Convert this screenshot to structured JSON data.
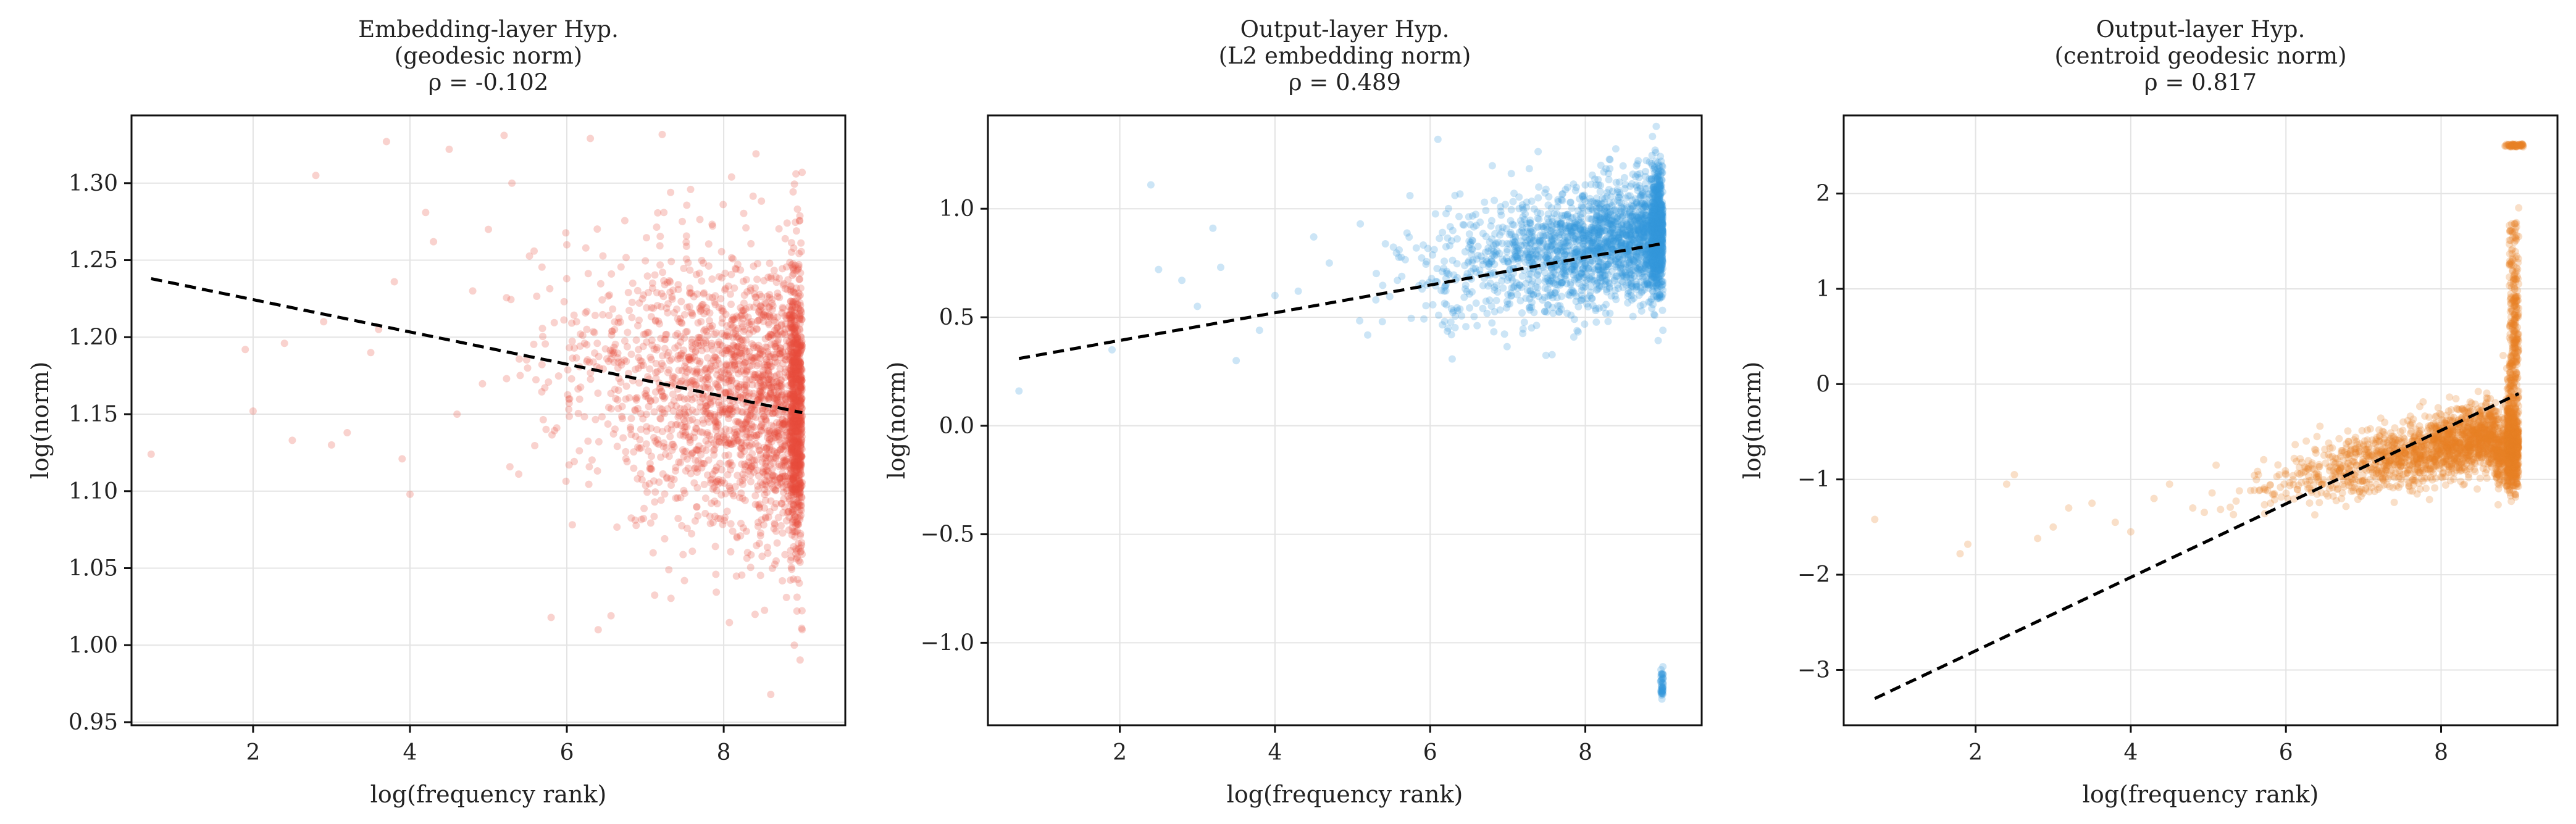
{
  "chart_data": [
    {
      "type": "scatter",
      "title": [
        "Embedding-layer Hyp.",
        "(geodesic norm)",
        "ρ = -0.102"
      ],
      "xlabel": "log(frequency rank)",
      "ylabel": "log(norm)",
      "xlim": [
        0.45,
        9.55
      ],
      "ylim": [
        0.948,
        1.344
      ],
      "xticks": [
        2,
        4,
        6,
        8
      ],
      "yticks": [
        0.95,
        1.0,
        1.05,
        1.1,
        1.15,
        1.2,
        1.25,
        1.3
      ],
      "ytick_labels": [
        "0.95",
        "1.00",
        "1.05",
        "1.10",
        "1.15",
        "1.20",
        "1.25",
        "1.30"
      ],
      "grid": true,
      "color": "#e74c3c",
      "point_count_estimate": 3000,
      "x_range_of_points": [
        0.7,
        9.0
      ],
      "points_sample": [
        [
          0.7,
          1.124
        ],
        [
          1.9,
          1.192
        ],
        [
          2.0,
          1.152
        ],
        [
          2.4,
          1.196
        ],
        [
          2.5,
          1.133
        ],
        [
          2.8,
          1.305
        ],
        [
          2.9,
          1.21
        ],
        [
          3.0,
          1.13
        ],
        [
          3.2,
          1.138
        ],
        [
          3.5,
          1.19
        ],
        [
          3.6,
          1.205
        ],
        [
          3.7,
          1.327
        ],
        [
          3.8,
          1.236
        ],
        [
          3.9,
          1.121
        ],
        [
          4.0,
          1.098
        ],
        [
          4.2,
          1.281
        ],
        [
          4.3,
          1.262
        ],
        [
          4.5,
          1.322
        ],
        [
          4.6,
          1.15
        ],
        [
          4.8,
          1.23
        ],
        [
          5.0,
          1.27
        ],
        [
          5.2,
          1.331
        ],
        [
          5.3,
          1.3
        ],
        [
          5.5,
          1.18
        ],
        [
          5.8,
          1.018
        ],
        [
          6.0,
          1.26
        ],
        [
          6.3,
          1.329
        ],
        [
          6.4,
          1.01
        ],
        [
          6.9,
          1.108
        ],
        [
          7.1,
          1.06
        ],
        [
          7.3,
          1.049
        ],
        [
          7.6,
          1.061
        ],
        [
          7.9,
          1.046
        ],
        [
          8.1,
          1.304
        ],
        [
          8.4,
          1.02
        ],
        [
          8.6,
          0.968
        ],
        [
          8.8,
          1.031
        ],
        [
          8.9,
          1.0
        ],
        [
          9.0,
          1.307
        ],
        [
          9.0,
          1.01
        ]
      ],
      "dense_region": {
        "x_range": [
          7.0,
          9.0
        ],
        "y_range": [
          1.06,
          1.25
        ]
      },
      "fit_line": {
        "x": [
          0.7,
          9.0
        ],
        "y": [
          1.238,
          1.151
        ]
      }
    },
    {
      "type": "scatter",
      "title": [
        "Output-layer Hyp.",
        "(L2 embedding norm)",
        "ρ = 0.489"
      ],
      "xlabel": "log(frequency rank)",
      "ylabel": "log(norm)",
      "xlim": [
        0.3,
        9.5
      ],
      "ylim": [
        -1.38,
        1.43
      ],
      "xticks": [
        2,
        4,
        6,
        8
      ],
      "yticks": [
        -1.0,
        -0.5,
        0.0,
        0.5,
        1.0
      ],
      "ytick_labels": [
        "−1.0",
        "−0.5",
        "0.0",
        "0.5",
        "1.0"
      ],
      "grid": true,
      "color": "#3498db",
      "point_count_estimate": 3000,
      "x_range_of_points": [
        0.7,
        9.0
      ],
      "points_sample": [
        [
          0.7,
          0.16
        ],
        [
          1.9,
          0.35
        ],
        [
          2.4,
          1.11
        ],
        [
          2.5,
          0.72
        ],
        [
          2.8,
          0.67
        ],
        [
          3.0,
          0.55
        ],
        [
          3.2,
          0.91
        ],
        [
          3.3,
          0.73
        ],
        [
          3.5,
          0.3
        ],
        [
          3.8,
          0.44
        ],
        [
          4.0,
          0.6
        ],
        [
          4.3,
          0.62
        ],
        [
          4.5,
          0.87
        ],
        [
          4.7,
          0.75
        ],
        [
          5.1,
          0.93
        ],
        [
          5.3,
          0.58
        ],
        [
          5.6,
          0.81
        ],
        [
          6.1,
          1.32
        ],
        [
          6.3,
          0.53
        ],
        [
          6.7,
          1.03
        ],
        [
          7.0,
          0.56
        ],
        [
          7.4,
          1.1
        ],
        [
          7.8,
          0.6
        ],
        [
          8.2,
          1.2
        ],
        [
          8.6,
          0.58
        ],
        [
          8.9,
          1.27
        ],
        [
          9.0,
          0.44
        ],
        [
          9.0,
          -1.11
        ],
        [
          9.0,
          -1.16
        ],
        [
          9.0,
          -1.22
        ]
      ],
      "dense_region": {
        "x_range": [
          6.5,
          9.0
        ],
        "y_range": [
          0.55,
          1.15
        ]
      },
      "outlier_cluster": {
        "x": 9.0,
        "y_range": [
          -1.25,
          -1.1
        ]
      },
      "fit_line": {
        "x": [
          0.7,
          9.0
        ],
        "y": [
          0.31,
          0.84
        ]
      }
    },
    {
      "type": "scatter",
      "title": [
        "Output-layer Hyp.",
        "(centroid geodesic norm)",
        "ρ = 0.817"
      ],
      "xlabel": "log(frequency rank)",
      "ylabel": "log(norm)",
      "xlim": [
        0.3,
        9.5
      ],
      "ylim": [
        -3.58,
        2.82
      ],
      "xticks": [
        2,
        4,
        6,
        8
      ],
      "yticks": [
        -3,
        -2,
        -1,
        0,
        1,
        2
      ],
      "ytick_labels": [
        "−3",
        "−2",
        "−1",
        "0",
        "1",
        "2"
      ],
      "grid": true,
      "color": "#e67e22",
      "point_count_estimate": 3000,
      "x_range_of_points": [
        0.7,
        9.0
      ],
      "points_sample": [
        [
          0.7,
          -1.42
        ],
        [
          1.8,
          -1.78
        ],
        [
          1.9,
          -1.68
        ],
        [
          2.4,
          -1.05
        ],
        [
          2.5,
          -0.95
        ],
        [
          2.8,
          -1.62
        ],
        [
          3.0,
          -1.5
        ],
        [
          3.2,
          -1.3
        ],
        [
          3.5,
          -1.25
        ],
        [
          3.8,
          -1.45
        ],
        [
          4.0,
          -1.55
        ],
        [
          4.3,
          -1.2
        ],
        [
          4.5,
          -1.05
        ],
        [
          4.8,
          -1.3
        ],
        [
          5.1,
          -0.85
        ],
        [
          5.4,
          -1.12
        ],
        [
          5.8,
          -1.25
        ],
        [
          6.0,
          -0.95
        ],
        [
          6.4,
          -0.55
        ],
        [
          6.8,
          -1.02
        ],
        [
          7.2,
          -0.48
        ],
        [
          7.6,
          -1.12
        ],
        [
          8.0,
          -0.32
        ],
        [
          8.3,
          -1.05
        ],
        [
          8.6,
          -0.15
        ],
        [
          8.8,
          0.3
        ],
        [
          8.9,
          0.9
        ],
        [
          9.0,
          1.55
        ],
        [
          9.0,
          1.85
        ]
      ],
      "dense_region": {
        "x_range": [
          6.5,
          9.0
        ],
        "y_range": [
          -1.1,
          -0.3
        ]
      },
      "outlier_cluster": {
        "x_range": [
          8.8,
          9.1
        ],
        "y": 2.5
      },
      "fit_line": {
        "x": [
          0.7,
          9.0
        ],
        "y": [
          -3.3,
          -0.1
        ]
      }
    }
  ]
}
